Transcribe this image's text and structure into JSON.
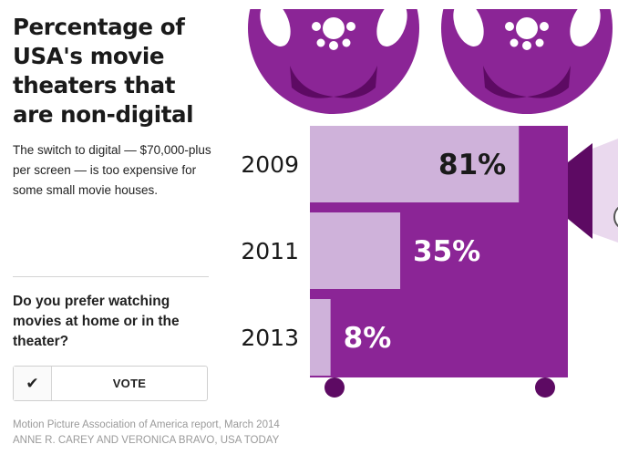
{
  "title": "Percentage of USA's movie theaters that are non-digital",
  "subtitle": "The switch to digital — $70,000-plus per screen — is too expensive for some small movie houses.",
  "poll": {
    "question": "Do you prefer watching movies at home or in the theater?",
    "check_icon": "✔",
    "vote_label": "VOTE"
  },
  "source": "Motion Picture Association of America report, March 2014",
  "credit": "ANNE R. CAREY AND VERONICA BRAVO, USA TODAY",
  "colors": {
    "projector_purple": "#8b2596",
    "bar_light": "#cfb2da",
    "dark_purple": "#5d0a63",
    "label_dark": "#1a1a1a",
    "label_light": "#ffffff"
  },
  "chart_data": {
    "type": "bar",
    "orientation": "horizontal",
    "categories": [
      "2009",
      "2011",
      "2013"
    ],
    "values": [
      81,
      35,
      8
    ],
    "value_labels": [
      "81%",
      "35%",
      "8%"
    ],
    "unit": "%",
    "xlim": [
      0,
      100
    ],
    "grid": false,
    "legend": "none"
  }
}
